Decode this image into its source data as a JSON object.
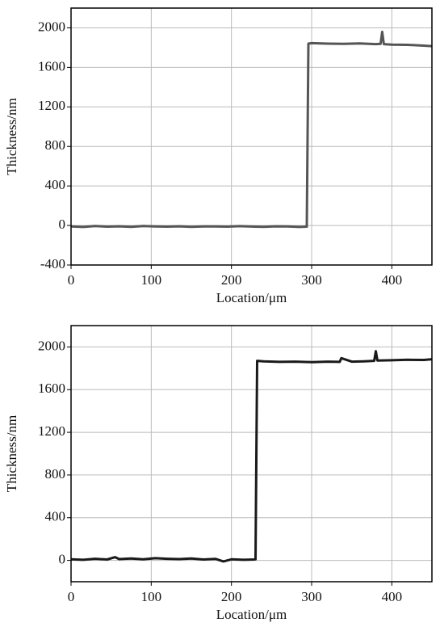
{
  "chart_data": [
    {
      "type": "line",
      "xlabel": "Location/μm",
      "ylabel": "Thickness/nm",
      "x": [
        0,
        15,
        30,
        45,
        60,
        75,
        90,
        105,
        120,
        135,
        150,
        165,
        180,
        195,
        210,
        225,
        240,
        255,
        270,
        285,
        294,
        296,
        300,
        320,
        340,
        360,
        380,
        386,
        388,
        390,
        400,
        420,
        440,
        450
      ],
      "values": [
        -10,
        -15,
        -5,
        -12,
        -8,
        -14,
        -6,
        -10,
        -12,
        -8,
        -14,
        -10,
        -9,
        -12,
        -7,
        -11,
        -13,
        -8,
        -10,
        -15,
        -12,
        1840,
        1845,
        1840,
        1838,
        1842,
        1835,
        1838,
        1960,
        1835,
        1830,
        1828,
        1820,
        1815
      ],
      "color": "#555555",
      "xlim": [
        0,
        450
      ],
      "xticks": [
        0,
        100,
        200,
        300,
        400
      ],
      "ylim": [
        -400,
        2200
      ],
      "yticks": [
        -400,
        0,
        400,
        800,
        1200,
        1600,
        2000
      ],
      "grid": true
    },
    {
      "type": "line",
      "xlabel": "Location/μm",
      "ylabel": "Thickness/nm",
      "x": [
        0,
        15,
        30,
        45,
        55,
        60,
        75,
        90,
        105,
        120,
        135,
        150,
        165,
        180,
        190,
        200,
        215,
        228,
        230,
        232,
        240,
        260,
        280,
        300,
        320,
        335,
        337,
        350,
        365,
        378,
        380,
        382,
        400,
        420,
        440,
        450
      ],
      "values": [
        10,
        5,
        15,
        8,
        30,
        12,
        18,
        10,
        20,
        15,
        12,
        18,
        8,
        14,
        -10,
        10,
        5,
        8,
        10,
        1870,
        1865,
        1860,
        1862,
        1858,
        1862,
        1860,
        1895,
        1862,
        1865,
        1870,
        1960,
        1872,
        1875,
        1880,
        1878,
        1885
      ],
      "color": "#1a1a1a",
      "xlim": [
        0,
        450
      ],
      "xticks": [
        0,
        100,
        200,
        300,
        400
      ],
      "ylim": [
        -200,
        2200
      ],
      "yticks": [
        0,
        400,
        800,
        1200,
        1600,
        2000
      ],
      "grid": true
    }
  ]
}
